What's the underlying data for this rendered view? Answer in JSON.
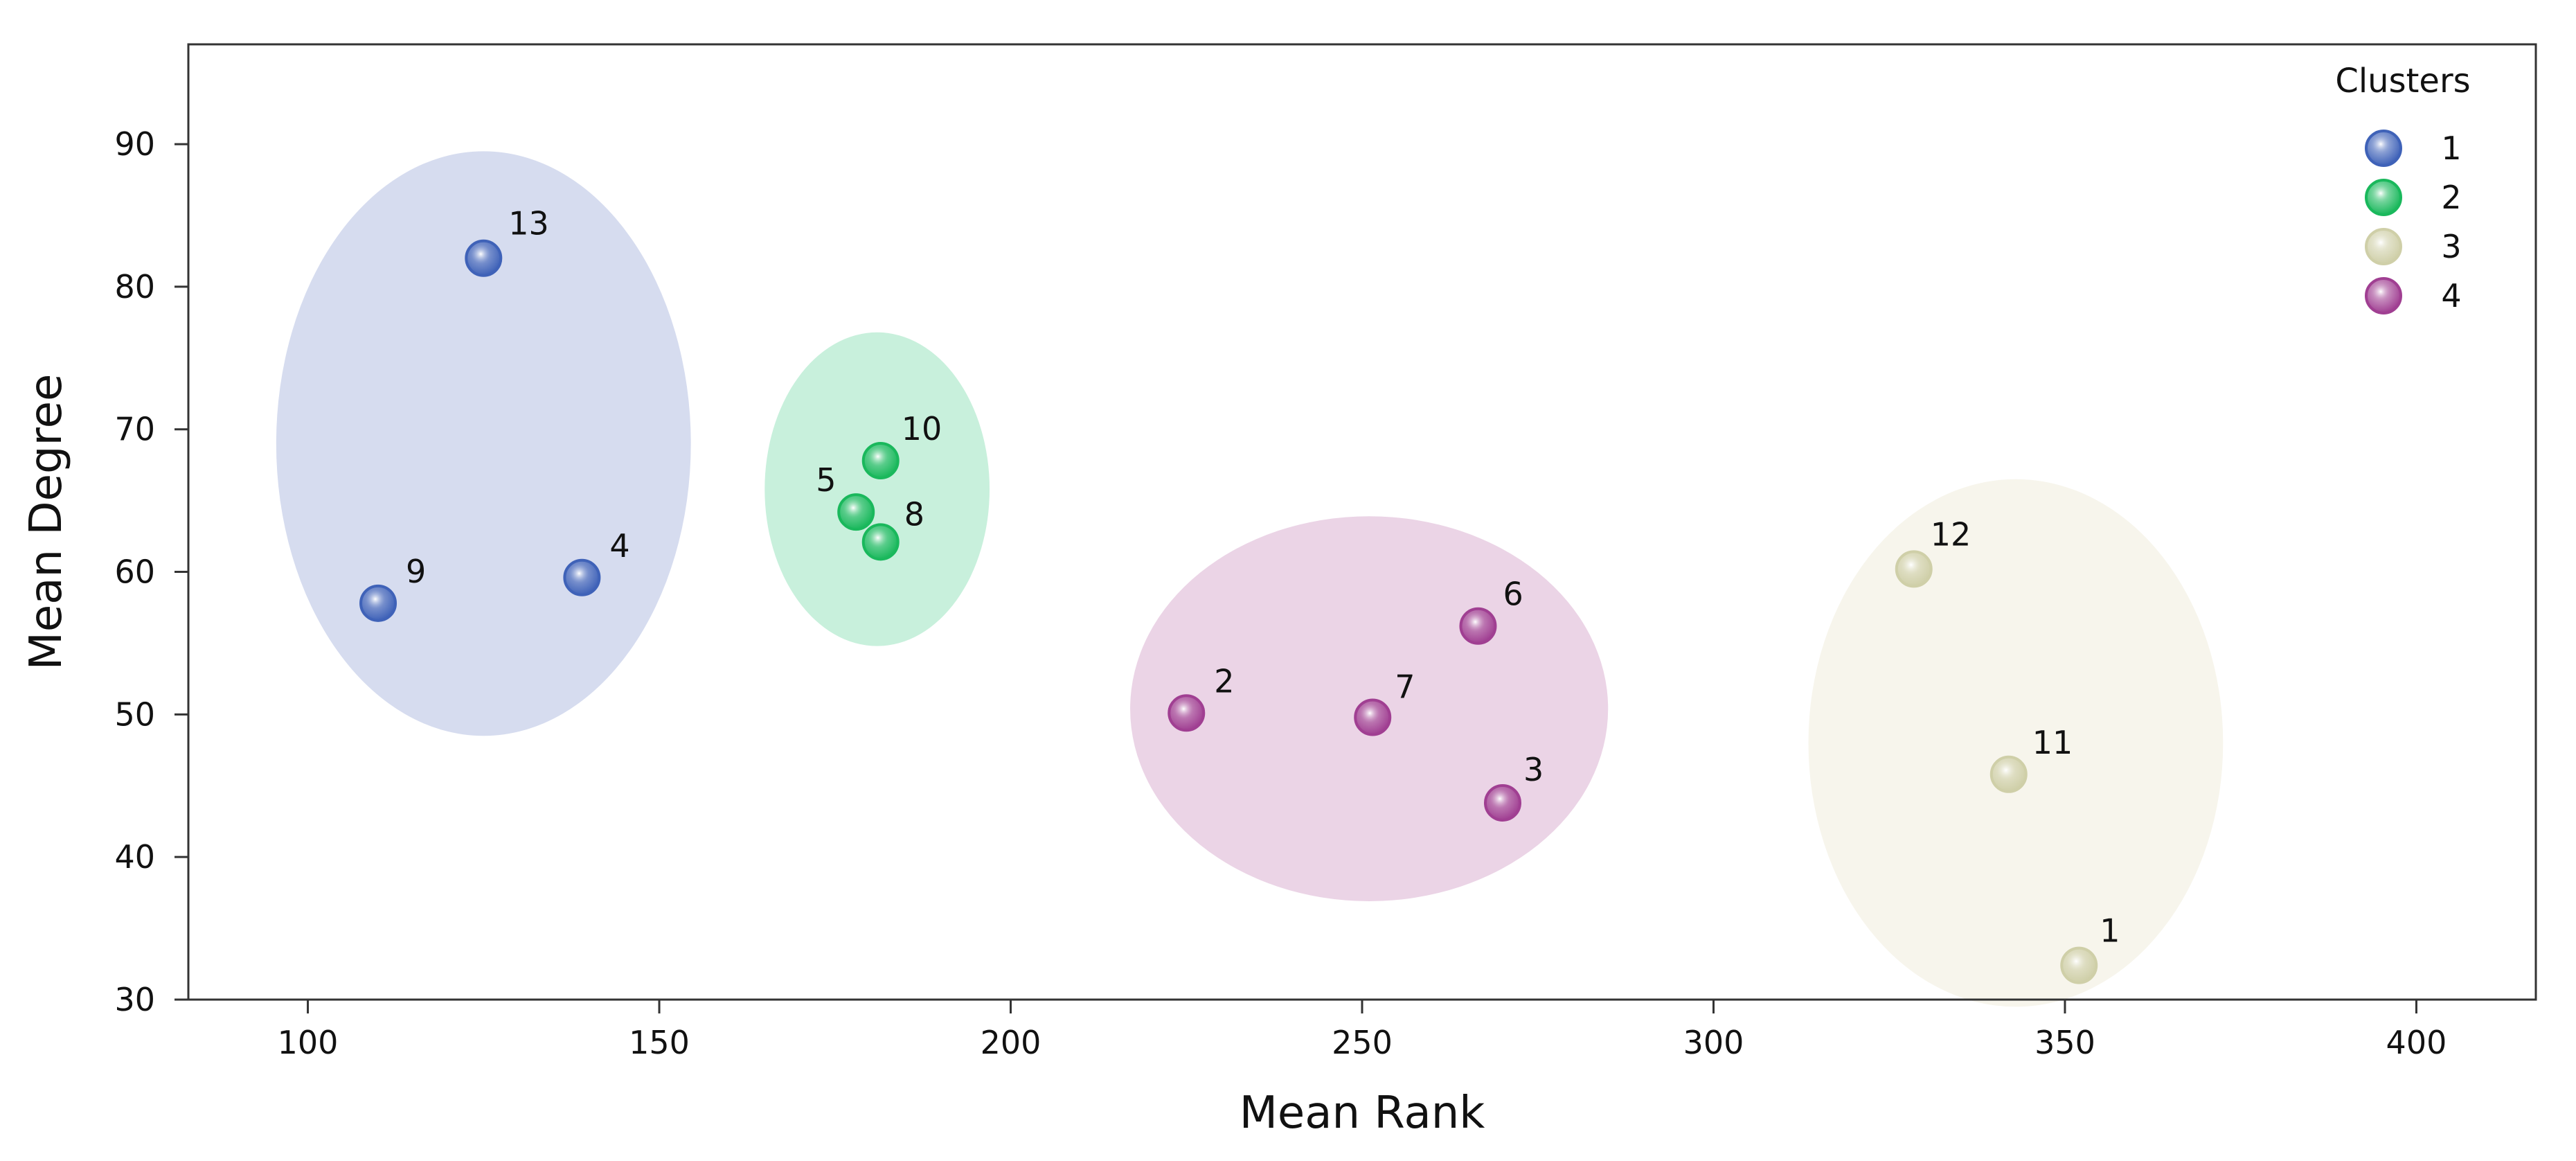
{
  "chart_data": {
    "type": "scatter",
    "title": "",
    "xlabel": "Mean Rank",
    "ylabel": "Mean Degree",
    "xlim": [
      83,
      417
    ],
    "ylim": [
      30,
      97
    ],
    "xticks": [
      100,
      150,
      200,
      250,
      300,
      350,
      400
    ],
    "yticks": [
      30,
      40,
      50,
      60,
      70,
      80,
      90
    ],
    "grid": false,
    "legend": {
      "title": "Clusters",
      "placement": "top-right",
      "entries": [
        "1",
        "2",
        "3",
        "4"
      ]
    },
    "series": [
      {
        "name": "1",
        "color": "#3f62b8",
        "fill": "#d6dcef",
        "ellipse": {
          "cx": 125,
          "cy": 69,
          "rx": 29.5,
          "ry": 20.5
        },
        "points": [
          {
            "label": "13",
            "x": 125,
            "y": 82
          },
          {
            "label": "9",
            "x": 110,
            "y": 57.8
          },
          {
            "label": "4",
            "x": 139,
            "y": 59.6
          }
        ]
      },
      {
        "name": "2",
        "color": "#1ab85c",
        "fill": "#c8f0dc",
        "ellipse": {
          "cx": 181,
          "cy": 65.8,
          "rx": 16,
          "ry": 11
        },
        "points": [
          {
            "label": "10",
            "x": 181.5,
            "y": 67.8
          },
          {
            "label": "5",
            "x": 178,
            "y": 64.2
          },
          {
            "label": "8",
            "x": 181.5,
            "y": 62.1
          }
        ]
      },
      {
        "name": "3",
        "color": "#cfcfa8",
        "fill": "#f7f5ec",
        "ellipse": {
          "cx": 343,
          "cy": 48,
          "rx": 29.5,
          "ry": 18.5
        },
        "points": [
          {
            "label": "12",
            "x": 328.5,
            "y": 60.2
          },
          {
            "label": "11",
            "x": 342,
            "y": 45.8
          },
          {
            "label": "1",
            "x": 352,
            "y": 32.4
          }
        ]
      },
      {
        "name": "4",
        "color": "#a03f92",
        "fill": "#ebd4e6",
        "ellipse": {
          "cx": 251,
          "cy": 50.4,
          "rx": 34,
          "ry": 13.5
        },
        "points": [
          {
            "label": "6",
            "x": 266.5,
            "y": 56.2
          },
          {
            "label": "2",
            "x": 225,
            "y": 50.1
          },
          {
            "label": "7",
            "x": 251.5,
            "y": 49.8
          },
          {
            "label": "3",
            "x": 270,
            "y": 43.8
          }
        ]
      }
    ]
  }
}
